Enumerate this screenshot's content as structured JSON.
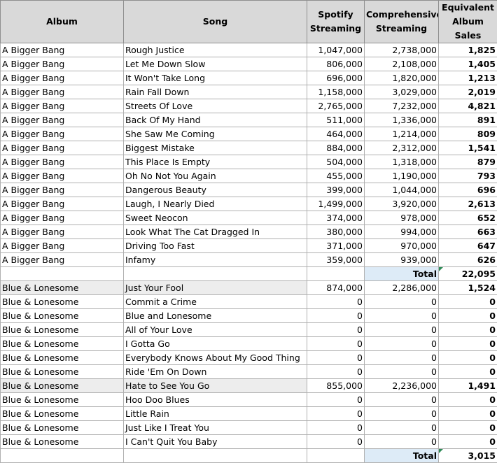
{
  "headers": {
    "album": "Album",
    "song": "Song",
    "spotify": "Spotify Streaming",
    "comprehensive": "Comprehensive Streaming",
    "equivalent": "Equivalent Album Sales"
  },
  "sections": [
    {
      "rows": [
        {
          "album": "A Bigger Bang",
          "song": "Rough Justice",
          "spotify": "1,047,000",
          "comprehensive": "2,738,000",
          "equivalent": "1,825"
        },
        {
          "album": "A Bigger Bang",
          "song": "Let Me Down Slow",
          "spotify": "806,000",
          "comprehensive": "2,108,000",
          "equivalent": "1,405"
        },
        {
          "album": "A Bigger Bang",
          "song": "It Won't Take Long",
          "spotify": "696,000",
          "comprehensive": "1,820,000",
          "equivalent": "1,213"
        },
        {
          "album": "A Bigger Bang",
          "song": "Rain Fall Down",
          "spotify": "1,158,000",
          "comprehensive": "3,029,000",
          "equivalent": "2,019"
        },
        {
          "album": "A Bigger Bang",
          "song": "Streets Of Love",
          "spotify": "2,765,000",
          "comprehensive": "7,232,000",
          "equivalent": "4,821"
        },
        {
          "album": "A Bigger Bang",
          "song": "Back Of My Hand",
          "spotify": "511,000",
          "comprehensive": "1,336,000",
          "equivalent": "891"
        },
        {
          "album": "A Bigger Bang",
          "song": "She Saw Me Coming",
          "spotify": "464,000",
          "comprehensive": "1,214,000",
          "equivalent": "809"
        },
        {
          "album": "A Bigger Bang",
          "song": "Biggest Mistake",
          "spotify": "884,000",
          "comprehensive": "2,312,000",
          "equivalent": "1,541"
        },
        {
          "album": "A Bigger Bang",
          "song": "This Place Is Empty",
          "spotify": "504,000",
          "comprehensive": "1,318,000",
          "equivalent": "879"
        },
        {
          "album": "A Bigger Bang",
          "song": "Oh No Not You Again",
          "spotify": "455,000",
          "comprehensive": "1,190,000",
          "equivalent": "793"
        },
        {
          "album": "A Bigger Bang",
          "song": "Dangerous Beauty",
          "spotify": "399,000",
          "comprehensive": "1,044,000",
          "equivalent": "696"
        },
        {
          "album": "A Bigger Bang",
          "song": "Laugh, I Nearly Died",
          "spotify": "1,499,000",
          "comprehensive": "3,920,000",
          "equivalent": "2,613"
        },
        {
          "album": "A Bigger Bang",
          "song": "Sweet Neocon",
          "spotify": "374,000",
          "comprehensive": "978,000",
          "equivalent": "652"
        },
        {
          "album": "A Bigger Bang",
          "song": "Look What The Cat Dragged In",
          "spotify": "380,000",
          "comprehensive": "994,000",
          "equivalent": "663"
        },
        {
          "album": "A Bigger Bang",
          "song": "Driving Too Fast",
          "spotify": "371,000",
          "comprehensive": "970,000",
          "equivalent": "647"
        },
        {
          "album": "A Bigger Bang",
          "song": "Infamy",
          "spotify": "359,000",
          "comprehensive": "939,000",
          "equivalent": "626"
        }
      ],
      "total_label": "Total",
      "total_value": "22,095"
    },
    {
      "rows": [
        {
          "album": "Blue & Lonesome",
          "song": "Just Your Fool",
          "spotify": "874,000",
          "comprehensive": "2,286,000",
          "equivalent": "1,524"
        },
        {
          "album": "Blue & Lonesome",
          "song": "Commit a Crime",
          "spotify": "0",
          "comprehensive": "0",
          "equivalent": "0"
        },
        {
          "album": "Blue & Lonesome",
          "song": "Blue and Lonesome",
          "spotify": "0",
          "comprehensive": "0",
          "equivalent": "0"
        },
        {
          "album": "Blue & Lonesome",
          "song": "All of Your Love",
          "spotify": "0",
          "comprehensive": "0",
          "equivalent": "0"
        },
        {
          "album": "Blue & Lonesome",
          "song": "I Gotta Go",
          "spotify": "0",
          "comprehensive": "0",
          "equivalent": "0"
        },
        {
          "album": "Blue & Lonesome",
          "song": "Everybody Knows About My Good Thing",
          "spotify": "0",
          "comprehensive": "0",
          "equivalent": "0"
        },
        {
          "album": "Blue & Lonesome",
          "song": "Ride 'Em On Down",
          "spotify": "0",
          "comprehensive": "0",
          "equivalent": "0"
        },
        {
          "album": "Blue & Lonesome",
          "song": "Hate to See You Go",
          "spotify": "855,000",
          "comprehensive": "2,236,000",
          "equivalent": "1,491"
        },
        {
          "album": "Blue & Lonesome",
          "song": "Hoo Doo Blues",
          "spotify": "0",
          "comprehensive": "0",
          "equivalent": "0"
        },
        {
          "album": "Blue & Lonesome",
          "song": "Little Rain",
          "spotify": "0",
          "comprehensive": "0",
          "equivalent": "0"
        },
        {
          "album": "Blue & Lonesome",
          "song": "Just Like I Treat You",
          "spotify": "0",
          "comprehensive": "0",
          "equivalent": "0"
        },
        {
          "album": "Blue & Lonesome",
          "song": "I Can't Quit You Baby",
          "spotify": "0",
          "comprehensive": "0",
          "equivalent": "0"
        }
      ],
      "total_label": "Total",
      "total_value": "3,015"
    }
  ]
}
